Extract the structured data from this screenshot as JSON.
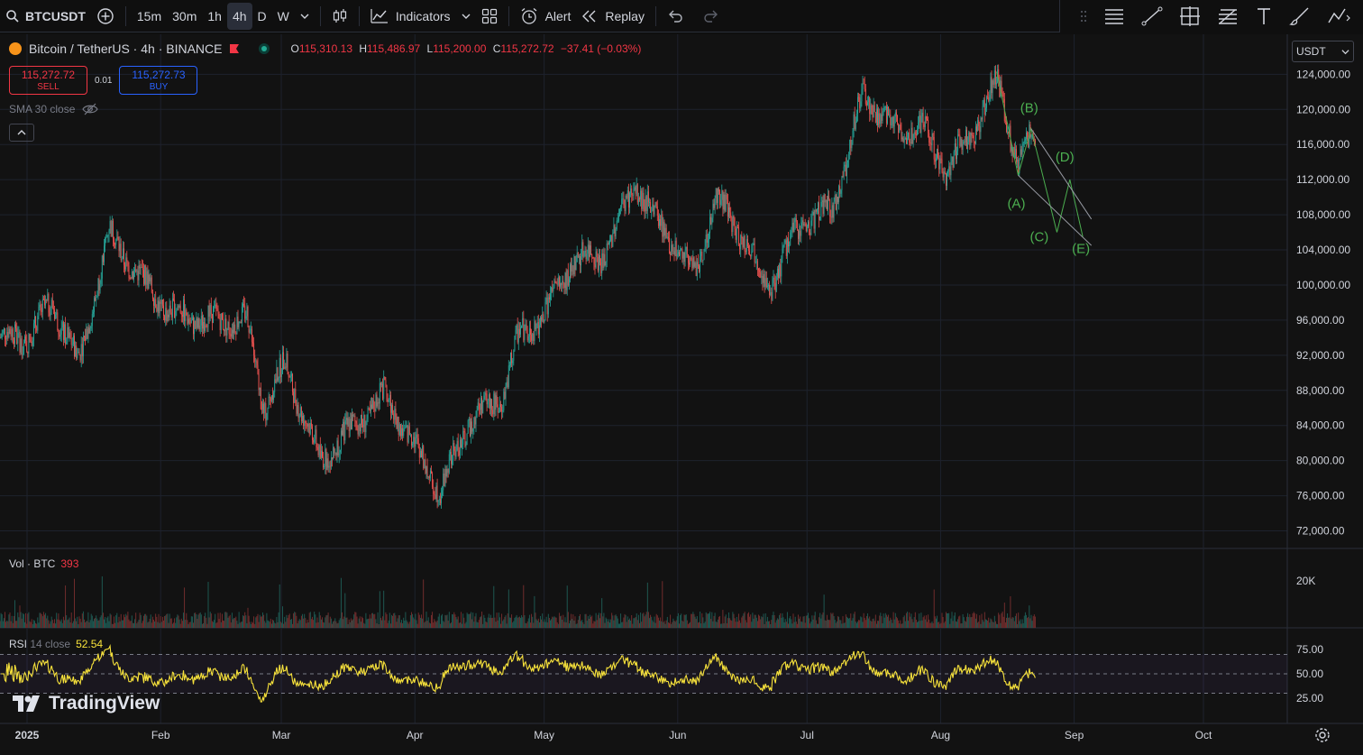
{
  "toolbar": {
    "symbol": "BTCUSDT",
    "timeframes": [
      "15m",
      "30m",
      "1h",
      "4h",
      "D",
      "W"
    ],
    "active_timeframe": "4h",
    "indicators_label": "Indicators",
    "alert_label": "Alert",
    "replay_label": "Replay"
  },
  "legend": {
    "title": "Bitcoin / TetherUS · 4h · BINANCE",
    "open_label": "O",
    "open": "115,310.13",
    "high_label": "H",
    "high": "115,486.97",
    "low_label": "L",
    "low": "115,200.00",
    "close_label": "C",
    "close": "115,272.72",
    "change": "−37.41 (−0.03%)"
  },
  "trade": {
    "sell_price": "115,272.72",
    "sell_label": "SELL",
    "spread": "0.01",
    "buy_price": "115,272.73",
    "buy_label": "BUY"
  },
  "sma_label": "SMA 30 close",
  "currency": "USDT",
  "volume": {
    "label": "Vol · BTC",
    "value": "393",
    "axis_tick": "20K"
  },
  "rsi": {
    "label": "RSI",
    "params": "14 close",
    "value": "52.54",
    "ticks": [
      "75.00",
      "50.00",
      "25.00"
    ]
  },
  "brand": "TradingView",
  "colors": {
    "up": "#26a69a",
    "down": "#ef5350",
    "rsi": "#f7e23b",
    "wave": "#4caf50",
    "buy": "#2962ff",
    "sell": "#f23645"
  },
  "chart_data": {
    "type": "candlestick",
    "title": "Bitcoin / TetherUS · 4h · BINANCE",
    "price_ticks": [
      "124,000.00",
      "120,000.00",
      "116,000.00",
      "112,000.00",
      "108,000.00",
      "104,000.00",
      "100,000.00",
      "96,000.00",
      "92,000.00",
      "88,000.00",
      "84,000.00",
      "80,000.00",
      "76,000.00",
      "72,000.00"
    ],
    "ylim": [
      70000,
      126500
    ],
    "x_labels": [
      "2025",
      "Feb",
      "Mar",
      "Apr",
      "May",
      "Jun",
      "Jul",
      "Aug",
      "Sep",
      "Oct"
    ],
    "price_path": [
      [
        "2025-01-01",
        94000
      ],
      [
        "2025-01-07",
        98000
      ],
      [
        "2025-01-13",
        91000
      ],
      [
        "2025-01-20",
        106000
      ],
      [
        "2025-01-27",
        101000
      ],
      [
        "2025-02-03",
        97000
      ],
      [
        "2025-02-10",
        96000
      ],
      [
        "2025-02-21",
        96000
      ],
      [
        "2025-02-25",
        86000
      ],
      [
        "2025-03-02",
        91000
      ],
      [
        "2025-03-10",
        80000
      ],
      [
        "2025-03-18",
        84000
      ],
      [
        "2025-03-25",
        87500
      ],
      [
        "2025-03-31",
        82500
      ],
      [
        "2025-04-07",
        76500
      ],
      [
        "2025-04-14",
        85000
      ],
      [
        "2025-04-21",
        87000
      ],
      [
        "2025-04-25",
        94000
      ],
      [
        "2025-05-01",
        96500
      ],
      [
        "2025-05-08",
        103000
      ],
      [
        "2025-05-15",
        103500
      ],
      [
        "2025-05-22",
        111500
      ],
      [
        "2025-05-29",
        106000
      ],
      [
        "2025-06-05",
        101500
      ],
      [
        "2025-06-10",
        110000
      ],
      [
        "2025-06-17",
        105000
      ],
      [
        "2025-06-22",
        99500
      ],
      [
        "2025-06-30",
        107500
      ],
      [
        "2025-07-07",
        108500
      ],
      [
        "2025-07-14",
        121500
      ],
      [
        "2025-07-21",
        118000
      ],
      [
        "2025-07-28",
        118000
      ],
      [
        "2025-08-02",
        113000
      ],
      [
        "2025-08-08",
        117000
      ],
      [
        "2025-08-14",
        123500
      ],
      [
        "2025-08-19",
        114000
      ],
      [
        "2025-08-22",
        116500
      ],
      [
        "2025-08-23",
        115300
      ]
    ],
    "annotations": [
      "(A)",
      "(B)",
      "(C)",
      "(D)",
      "(E)"
    ]
  }
}
